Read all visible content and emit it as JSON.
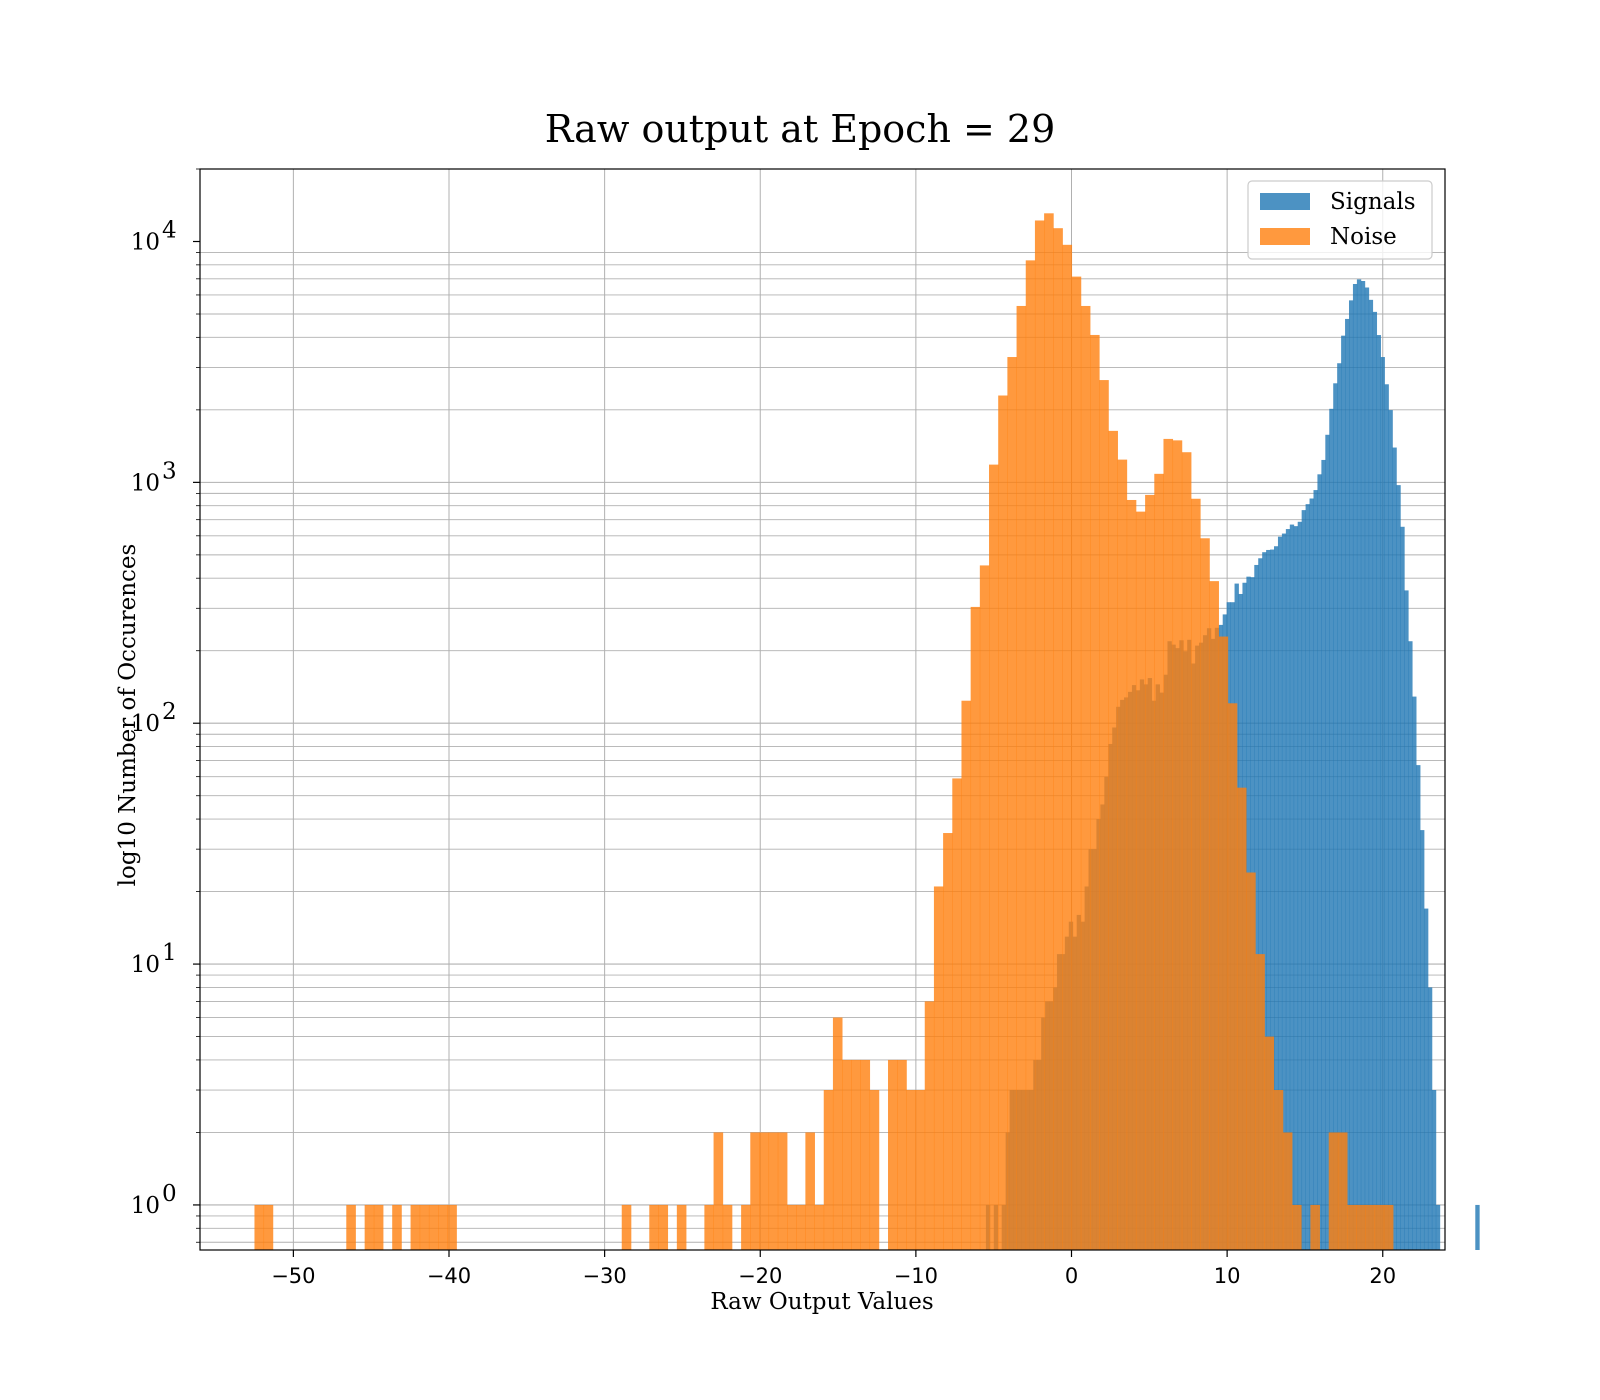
{
  "colors": {
    "signals": "#1f77b4",
    "noise": "#ff7f0e",
    "grid": "#b0b0b0",
    "axis": "#000000"
  },
  "chart_data": {
    "type": "bar",
    "title": "Raw output at Epoch = 29",
    "xlabel": "Raw Output Values",
    "ylabel": "log10 Number of Occurences",
    "xlim": [
      -56,
      24
    ],
    "ylim": [
      0.65,
      20000
    ],
    "yscale": "log",
    "grid": true,
    "legend": "top-right",
    "bar_opacity": 0.8,
    "x_ticks": [
      -50,
      -40,
      -30,
      -20,
      -10,
      0,
      10,
      20
    ],
    "x_tick_labels": [
      "−50",
      "−40",
      "−30",
      "−20",
      "−10",
      "0",
      "10",
      "20"
    ],
    "y_ticks": [
      {
        "value": 1,
        "base": "10",
        "exp": "0"
      },
      {
        "value": 10,
        "base": "10",
        "exp": "1"
      },
      {
        "value": 100,
        "base": "10",
        "exp": "2"
      },
      {
        "value": 1000,
        "base": "10",
        "exp": "3"
      },
      {
        "value": 10000,
        "base": "10",
        "exp": "4"
      }
    ],
    "series": [
      {
        "name": "Signals",
        "bin_start": -5.5,
        "bin_width": 0.2536,
        "values": [
          1,
          0,
          1,
          0,
          1,
          2,
          3,
          3,
          3,
          3,
          3,
          3,
          4,
          4,
          6,
          7,
          7,
          8,
          11,
          11,
          13,
          15,
          13,
          16,
          15,
          21,
          30,
          30,
          40,
          46,
          60,
          82,
          96,
          117,
          125,
          128,
          135,
          144,
          137,
          152,
          145,
          154,
          124,
          145,
          134,
          159,
          219,
          212,
          205,
          221,
          199,
          222,
          177,
          210,
          216,
          232,
          248,
          224,
          249,
          256,
          283,
          318,
          318,
          380,
          344,
          383,
          406,
          404,
          454,
          484,
          513,
          524,
          526,
          543,
          595,
          613,
          640,
          668,
          658,
          686,
          767,
          812,
          857,
          929,
          1080,
          1239,
          1576,
          2020,
          2578,
          3123,
          4065,
          4770,
          5697,
          6662,
          6964,
          6855,
          6442,
          5725,
          5103,
          4089,
          3314,
          2554,
          1996,
          1395,
          974,
          654,
          356,
          219,
          129,
          67,
          36,
          17,
          8,
          3,
          1,
          0,
          0,
          0,
          0,
          0,
          0,
          0,
          0,
          0,
          1
        ],
        "note": "values are counts per bin"
      },
      {
        "name": "Noise",
        "bin_edges_start": -52.5,
        "bin_width": 0.59,
        "values": [
          1,
          1,
          0,
          0,
          0,
          0,
          0,
          0,
          0,
          0,
          1,
          0,
          1,
          1,
          0,
          1,
          0,
          1,
          1,
          1,
          1,
          1,
          0,
          0,
          0,
          0,
          0,
          0,
          0,
          0,
          0,
          0,
          0,
          0,
          0,
          0,
          0,
          0,
          0,
          0,
          1,
          0,
          0,
          1,
          1,
          0,
          1,
          0,
          0,
          1,
          2,
          1,
          0,
          1,
          2,
          2,
          2,
          2,
          1,
          1,
          2,
          1,
          3,
          6,
          4,
          4,
          4,
          3,
          0,
          4,
          4,
          3,
          3,
          7,
          21,
          35,
          59,
          124,
          304,
          452,
          1185,
          2294,
          3314,
          5400,
          8350,
          12226,
          13094,
          11357,
          9689,
          7150,
          5400,
          4093,
          2659,
          1636,
          1243,
          845,
          756,
          887,
          1085,
          1515,
          1494,
          1334,
          855,
          586,
          389,
          229,
          121,
          54,
          24,
          11,
          5,
          3,
          2,
          1,
          0,
          1,
          0,
          2,
          2,
          1,
          1,
          1,
          1,
          1
        ],
        "note": "values are counts per bin"
      }
    ]
  }
}
